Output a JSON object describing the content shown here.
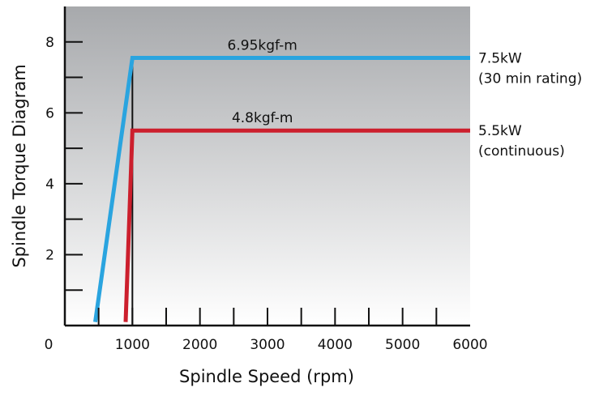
{
  "chart_data": {
    "type": "line",
    "xlabel": "Spindle Speed (rpm)",
    "ylabel": "Spindle Torque Diagram",
    "xlim": [
      0,
      6000
    ],
    "ylim": [
      0,
      9
    ],
    "x_ticks": [
      {
        "value": 0,
        "label": "0"
      },
      {
        "value": 1000,
        "label": "1000"
      },
      {
        "value": 2000,
        "label": "2000"
      },
      {
        "value": 3000,
        "label": "3000"
      },
      {
        "value": 4000,
        "label": "4000"
      },
      {
        "value": 5000,
        "label": "5000"
      },
      {
        "value": 6000,
        "label": "6000"
      }
    ],
    "x_minor_ticks": [
      500,
      1500,
      2500,
      3500,
      4500,
      5500
    ],
    "y_ticks": [
      {
        "value": 2,
        "label": "2"
      },
      {
        "value": 4,
        "label": "4"
      },
      {
        "value": 6,
        "label": "6"
      },
      {
        "value": 8,
        "label": "8"
      }
    ],
    "y_minor_ticks": [
      1,
      3,
      5,
      7
    ],
    "grid": false,
    "background_gradient": [
      "#a7a9ac",
      "#ffffff"
    ],
    "series": [
      {
        "power_label": [
          "7.5kW",
          "(30 min rating)"
        ],
        "torque_label": "6.95kgf-m",
        "color": "#2aa4df",
        "points": [
          [
            450,
            0.1
          ],
          [
            1000,
            7.55
          ],
          [
            6000,
            7.55
          ]
        ]
      },
      {
        "power_label": [
          "5.5kW",
          "(continuous)"
        ],
        "torque_label": "4.8kgf-m",
        "color": "#cc1f2d",
        "points": [
          [
            900,
            0.1
          ],
          [
            1000,
            5.5
          ],
          [
            6000,
            5.5
          ]
        ]
      }
    ],
    "base_speed_marker": {
      "x": 1000,
      "y_top": 7.55
    }
  }
}
